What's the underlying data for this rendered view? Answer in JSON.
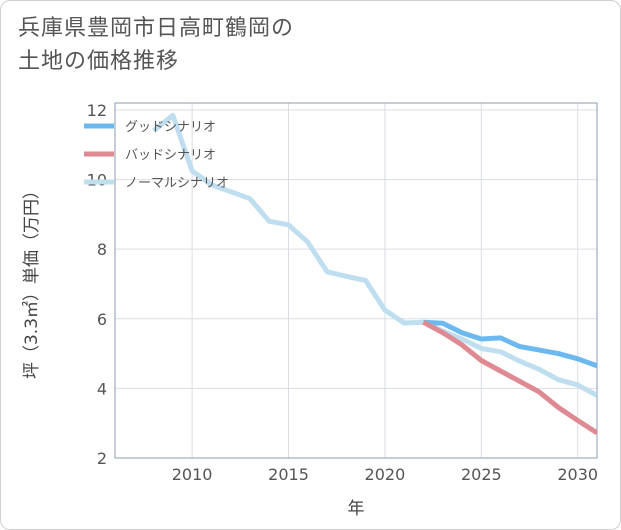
{
  "title_lines": [
    "兵庫県豊岡市日高町鶴岡の",
    "土地の価格推移"
  ],
  "chart_data": {
    "type": "line",
    "title": "兵庫県豊岡市日高町鶴岡の土地の価格推移",
    "xlabel": "年",
    "ylabel": "坪（3.3㎡）単価（万円）",
    "xlim": [
      2006,
      2031
    ],
    "ylim": [
      2,
      12.2
    ],
    "xticks": [
      2010,
      2015,
      2020,
      2025,
      2030
    ],
    "yticks": [
      2,
      4,
      6,
      8,
      10,
      12
    ],
    "grid": true,
    "legend_position": "top-left",
    "series": [
      {
        "name": "グッドシナリオ",
        "color": "#6cb9ef",
        "x": [
          2022,
          2023,
          2024,
          2025,
          2026,
          2027,
          2028,
          2029,
          2030,
          2031
        ],
        "y": [
          5.9,
          5.87,
          5.6,
          5.42,
          5.45,
          5.2,
          5.1,
          5.0,
          4.85,
          4.65
        ]
      },
      {
        "name": "バッドシナリオ",
        "color": "#df8a92",
        "x": [
          2022,
          2023,
          2024,
          2025,
          2026,
          2027,
          2028,
          2029,
          2030,
          2031
        ],
        "y": [
          5.9,
          5.6,
          5.25,
          4.8,
          4.5,
          4.2,
          3.9,
          3.45,
          3.08,
          2.72
        ]
      },
      {
        "name": "ノーマルシナリオ",
        "color": "#bfdeef",
        "x": [
          2008,
          2009,
          2010,
          2011,
          2012,
          2013,
          2014,
          2015,
          2016,
          2017,
          2018,
          2019,
          2020,
          2021,
          2022,
          2023,
          2024,
          2025,
          2026,
          2027,
          2028,
          2029,
          2030,
          2031
        ],
        "y": [
          11.4,
          11.85,
          10.25,
          9.85,
          9.65,
          9.45,
          8.8,
          8.7,
          8.2,
          7.35,
          7.22,
          7.1,
          6.25,
          5.88,
          5.9,
          5.65,
          5.42,
          5.15,
          5.05,
          4.78,
          4.55,
          4.25,
          4.1,
          3.8
        ]
      }
    ]
  }
}
